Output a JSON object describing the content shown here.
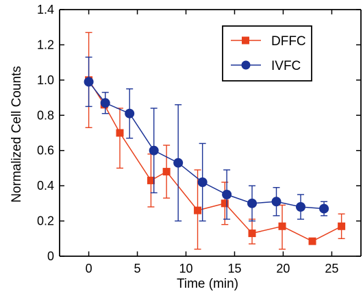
{
  "chart_data": {
    "type": "line",
    "title": "",
    "xlabel": "Time (min)",
    "ylabel": "Normalized Cell Counts",
    "xlim": [
      -3,
      28
    ],
    "ylim": [
      0,
      1.4
    ],
    "x_ticks": [
      0,
      5,
      10,
      15,
      20,
      25
    ],
    "x_tick_labels": [
      "0",
      "5",
      "10",
      "15",
      "20",
      "25"
    ],
    "y_ticks": [
      0,
      0.2,
      0.4,
      0.6,
      0.8,
      1.0,
      1.2,
      1.4
    ],
    "y_tick_labels": [
      "0",
      "0.2",
      "0.4",
      "0.6",
      "0.8",
      "1.0",
      "1.2",
      "1.4"
    ],
    "grid": false,
    "legend_position": "top-right",
    "series": [
      {
        "name": "DFFC",
        "marker": "square",
        "color": "#e8401c",
        "points": [
          {
            "x": 0,
            "y": 1.0,
            "err_low": 0.27,
            "err_high": 0.27
          },
          {
            "x": 1.6,
            "y": 0.86,
            "err_low": 0.0,
            "err_high": 0.0
          },
          {
            "x": 3.2,
            "y": 0.7,
            "err_low": 0.2,
            "err_high": 0.14
          },
          {
            "x": 6.4,
            "y": 0.43,
            "err_low": 0.15,
            "err_high": 0.15
          },
          {
            "x": 8.0,
            "y": 0.48,
            "err_low": 0.15,
            "err_high": 0.15
          },
          {
            "x": 11.2,
            "y": 0.26,
            "err_low": 0.22,
            "err_high": 0.23
          },
          {
            "x": 14.0,
            "y": 0.3,
            "err_low": 0.12,
            "err_high": 0.12
          },
          {
            "x": 16.8,
            "y": 0.13,
            "err_low": 0.06,
            "err_high": 0.08
          },
          {
            "x": 19.9,
            "y": 0.17,
            "err_low": 0.13,
            "err_high": 0.12
          },
          {
            "x": 23.0,
            "y": 0.085,
            "err_low": 0.0,
            "err_high": 0.0
          },
          {
            "x": 26.0,
            "y": 0.17,
            "err_low": 0.07,
            "err_high": 0.07
          }
        ]
      },
      {
        "name": "IVFC",
        "marker": "circle",
        "color": "#1a3296",
        "points": [
          {
            "x": 0,
            "y": 0.99,
            "err_low": 0.14,
            "err_high": 0.14
          },
          {
            "x": 1.7,
            "y": 0.87,
            "err_low": 0.06,
            "err_high": 0.06
          },
          {
            "x": 4.2,
            "y": 0.81,
            "err_low": 0.14,
            "err_high": 0.14
          },
          {
            "x": 6.7,
            "y": 0.6,
            "err_low": 0.24,
            "err_high": 0.24
          },
          {
            "x": 9.2,
            "y": 0.53,
            "err_low": 0.33,
            "err_high": 0.33
          },
          {
            "x": 11.7,
            "y": 0.42,
            "err_low": 0.22,
            "err_high": 0.22
          },
          {
            "x": 14.2,
            "y": 0.35,
            "err_low": 0.14,
            "err_high": 0.14
          },
          {
            "x": 16.8,
            "y": 0.3,
            "err_low": 0.1,
            "err_high": 0.1
          },
          {
            "x": 19.3,
            "y": 0.31,
            "err_low": 0.08,
            "err_high": 0.08
          },
          {
            "x": 21.8,
            "y": 0.28,
            "err_low": 0.07,
            "err_high": 0.07
          },
          {
            "x": 24.2,
            "y": 0.27,
            "err_low": 0.04,
            "err_high": 0.04
          }
        ]
      }
    ]
  }
}
